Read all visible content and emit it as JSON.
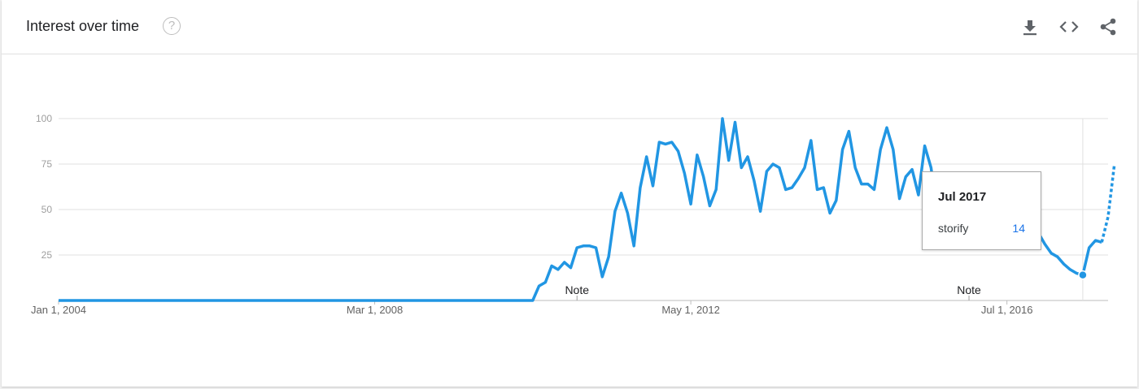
{
  "header": {
    "title": "Interest over time",
    "help_glyph": "?",
    "icons": [
      "download-icon",
      "embed-code-icon",
      "share-icon"
    ]
  },
  "colors": {
    "series": "#2196e3",
    "grid": "#e0e0e0",
    "tooltip_value": "#1a73e8"
  },
  "tooltip": {
    "date": "Jul 2017",
    "series_name": "storify",
    "value": "14"
  },
  "chart_data": {
    "type": "line",
    "title": "",
    "xlabel": "",
    "ylabel": "",
    "ylim": [
      0,
      100
    ],
    "y_ticks": [
      25,
      50,
      75,
      100
    ],
    "x_tick_labels": [
      "Jan 1, 2004",
      "Mar 1, 2008",
      "May 1, 2012",
      "Jul 1, 2016"
    ],
    "x_tick_dates": [
      "2004-01",
      "2008-03",
      "2012-05",
      "2016-07"
    ],
    "x_range": [
      "2004-01",
      "2017-11"
    ],
    "grid": true,
    "annotations": [
      {
        "label": "Note",
        "date": "2010-11"
      },
      {
        "label": "Note",
        "date": "2016-01"
      }
    ],
    "highlight": {
      "date": "2017-07",
      "value": 14
    },
    "partial_from": "2017-10",
    "series": [
      {
        "name": "storify",
        "points": [
          [
            "2004-01",
            0
          ],
          [
            "2010-04",
            0
          ],
          [
            "2010-05",
            8
          ],
          [
            "2010-06",
            10
          ],
          [
            "2010-07",
            19
          ],
          [
            "2010-08",
            17
          ],
          [
            "2010-09",
            21
          ],
          [
            "2010-10",
            18
          ],
          [
            "2010-11",
            29
          ],
          [
            "2010-12",
            30
          ],
          [
            "2011-01",
            30
          ],
          [
            "2011-02",
            29
          ],
          [
            "2011-03",
            13
          ],
          [
            "2011-04",
            24
          ],
          [
            "2011-05",
            49
          ],
          [
            "2011-06",
            59
          ],
          [
            "2011-07",
            48
          ],
          [
            "2011-08",
            30
          ],
          [
            "2011-09",
            62
          ],
          [
            "2011-10",
            79
          ],
          [
            "2011-11",
            63
          ],
          [
            "2011-12",
            87
          ],
          [
            "2012-01",
            86
          ],
          [
            "2012-02",
            87
          ],
          [
            "2012-03",
            82
          ],
          [
            "2012-04",
            70
          ],
          [
            "2012-05",
            53
          ],
          [
            "2012-06",
            80
          ],
          [
            "2012-07",
            68
          ],
          [
            "2012-08",
            52
          ],
          [
            "2012-09",
            61
          ],
          [
            "2012-10",
            100
          ],
          [
            "2012-11",
            77
          ],
          [
            "2012-12",
            98
          ],
          [
            "2013-01",
            73
          ],
          [
            "2013-02",
            79
          ],
          [
            "2013-03",
            66
          ],
          [
            "2013-04",
            49
          ],
          [
            "2013-05",
            71
          ],
          [
            "2013-06",
            75
          ],
          [
            "2013-07",
            73
          ],
          [
            "2013-08",
            61
          ],
          [
            "2013-09",
            62
          ],
          [
            "2013-10",
            67
          ],
          [
            "2013-11",
            73
          ],
          [
            "2013-12",
            88
          ],
          [
            "2014-01",
            61
          ],
          [
            "2014-02",
            62
          ],
          [
            "2014-03",
            48
          ],
          [
            "2014-04",
            55
          ],
          [
            "2014-05",
            83
          ],
          [
            "2014-06",
            93
          ],
          [
            "2014-07",
            73
          ],
          [
            "2014-08",
            64
          ],
          [
            "2014-09",
            64
          ],
          [
            "2014-10",
            61
          ],
          [
            "2014-11",
            83
          ],
          [
            "2014-12",
            95
          ],
          [
            "2015-01",
            83
          ],
          [
            "2015-02",
            56
          ],
          [
            "2015-03",
            68
          ],
          [
            "2015-04",
            72
          ],
          [
            "2015-05",
            58
          ],
          [
            "2015-06",
            85
          ],
          [
            "2015-07",
            73
          ],
          [
            "2015-08",
            47
          ],
          [
            "2015-09",
            45
          ],
          [
            "2015-10",
            42
          ],
          [
            "2015-11",
            40
          ],
          [
            "2015-12",
            35
          ],
          [
            "2016-01",
            33
          ],
          [
            "2016-02",
            33
          ],
          [
            "2016-03",
            36
          ],
          [
            "2016-04",
            34
          ],
          [
            "2016-05",
            42
          ],
          [
            "2016-06",
            50
          ],
          [
            "2016-07",
            57
          ],
          [
            "2016-08",
            35
          ],
          [
            "2016-09",
            33
          ],
          [
            "2016-10",
            36
          ],
          [
            "2016-11",
            59
          ],
          [
            "2016-12",
            37
          ],
          [
            "2017-01",
            31
          ],
          [
            "2017-02",
            26
          ],
          [
            "2017-03",
            24
          ],
          [
            "2017-04",
            20
          ],
          [
            "2017-05",
            17
          ],
          [
            "2017-06",
            15
          ],
          [
            "2017-07",
            14
          ],
          [
            "2017-08",
            29
          ],
          [
            "2017-09",
            33
          ],
          [
            "2017-10",
            32
          ],
          [
            "2017-11",
            46
          ],
          [
            "2017-12",
            75
          ]
        ]
      }
    ]
  }
}
